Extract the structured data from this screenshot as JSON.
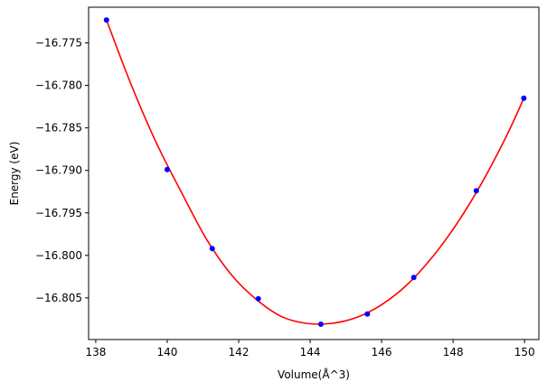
{
  "chart_data": {
    "type": "scatter",
    "title": "",
    "xlabel": "Volume(Å^3)",
    "ylabel": "Energy (eV)",
    "xlim": [
      137.8,
      150.4
    ],
    "ylim": [
      -16.8099,
      -16.7708
    ],
    "x_ticks": [
      138,
      140,
      142,
      144,
      146,
      148,
      150
    ],
    "x_tick_labels": [
      "138",
      "140",
      "142",
      "144",
      "146",
      "148",
      "150"
    ],
    "y_ticks": [
      -16.805,
      -16.8,
      -16.795,
      -16.79,
      -16.785,
      -16.78,
      -16.775
    ],
    "y_tick_labels": [
      "−16.805",
      "−16.800",
      "−16.795",
      "−16.790",
      "−16.785",
      "−16.780",
      "−16.775"
    ],
    "grid": false,
    "legend": "none",
    "series": [
      {
        "kind": "points",
        "color": "#0000ff",
        "x": [
          138.3,
          140.0,
          141.26,
          142.55,
          144.3,
          145.6,
          146.9,
          148.65,
          149.98
        ],
        "y": [
          -16.7723,
          -16.7899,
          -16.7992,
          -16.8051,
          -16.8081,
          -16.8069,
          -16.8026,
          -16.7924,
          -16.7815
        ]
      },
      {
        "kind": "fit-curve",
        "color": "#ff0000",
        "x": [
          138.3,
          139.0,
          139.7,
          140.4,
          141.1,
          141.8,
          142.5,
          143.2,
          143.9,
          144.6,
          145.3,
          146.0,
          146.7,
          147.4,
          148.1,
          148.8,
          149.5,
          149.98
        ],
        "y": [
          -16.7723,
          -16.78,
          -16.7868,
          -16.7926,
          -16.7981,
          -16.8023,
          -16.8052,
          -16.8072,
          -16.808,
          -16.808,
          -16.8073,
          -16.8058,
          -16.8035,
          -16.8003,
          -16.7963,
          -16.7915,
          -16.7859,
          -16.7815
        ]
      }
    ]
  }
}
